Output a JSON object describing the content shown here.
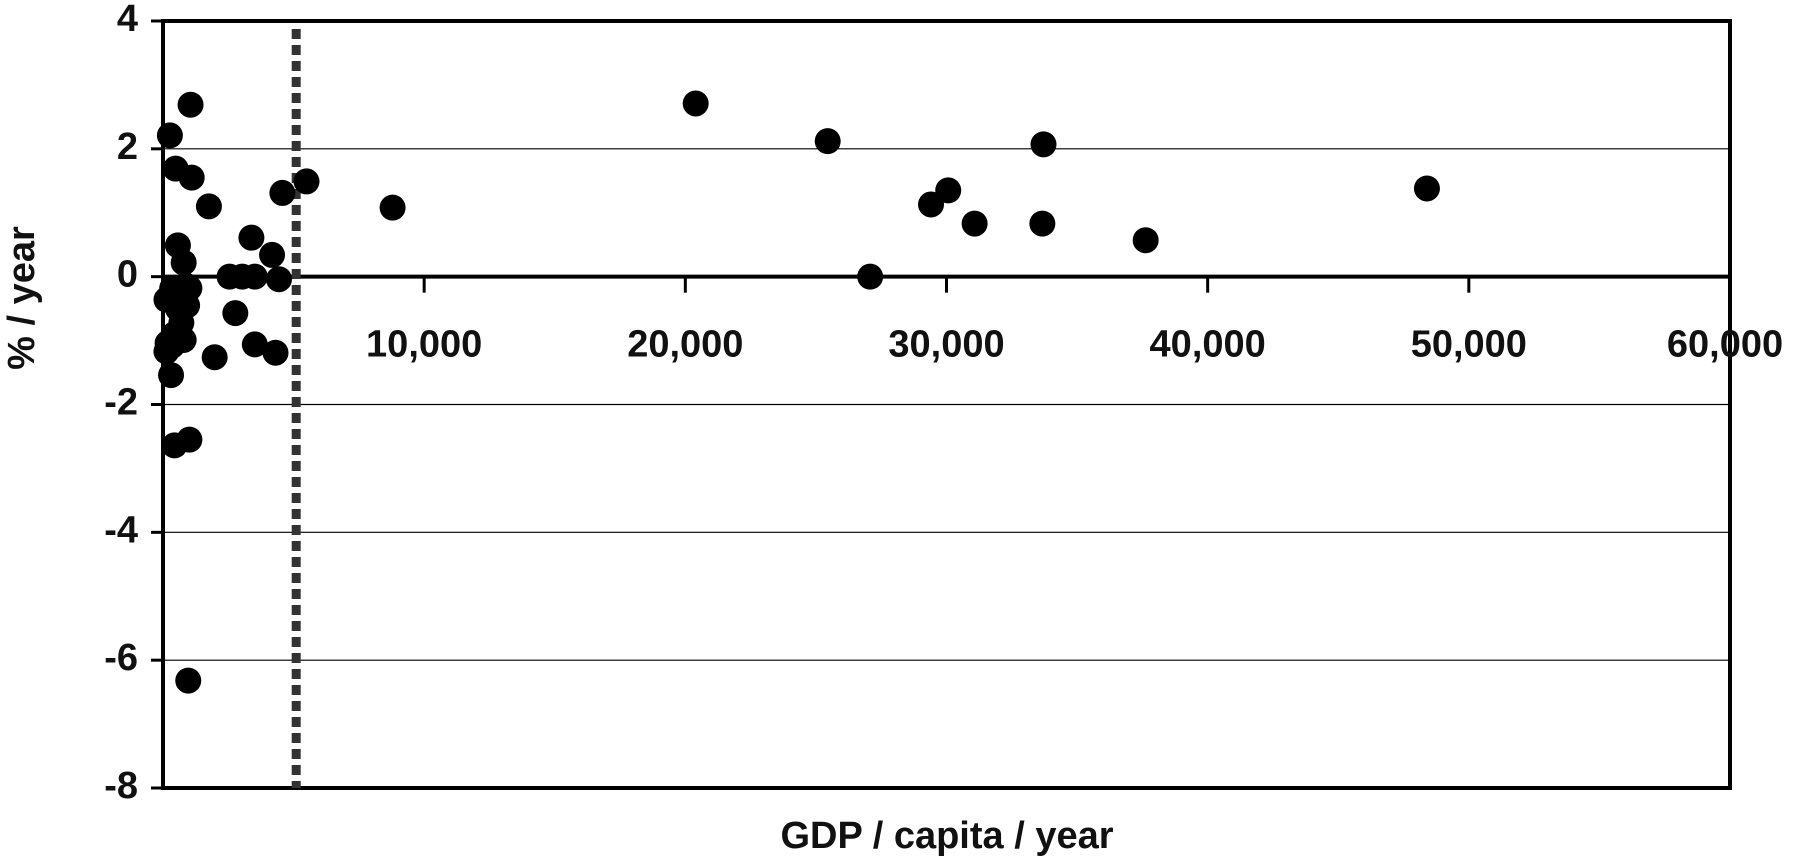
{
  "chart_data": {
    "type": "scatter",
    "x_label": "GDP / capita / year",
    "y_label": "% / year",
    "color": "#000000",
    "xlim": [
      0,
      60000
    ],
    "ylim": [
      -8,
      4
    ],
    "xticks": [
      {
        "value": 10000,
        "label": "10,000"
      },
      {
        "value": 20000,
        "label": "20,000"
      },
      {
        "value": 30000,
        "label": "30,000"
      },
      {
        "value": 40000,
        "label": "40,000"
      },
      {
        "value": 50000,
        "label": "50,000"
      },
      {
        "value": 60000,
        "label": "60,000"
      }
    ],
    "yticks": [
      -8,
      -6,
      -4,
      -2,
      0,
      2,
      4
    ],
    "grid": true,
    "reference_line_x": 5100,
    "x": [
      264,
      1055,
      484,
      1099,
      1758,
      4571,
      5495,
      8791,
      20396,
      25451,
      33714,
      30066,
      29407,
      31077,
      33670,
      37626,
      48396,
      27077,
      3385,
      4176,
      571,
      791,
      2549,
      3033,
      3516,
      4440,
      2769,
      3516,
      4308,
      1978,
      132,
      352,
      879,
      1011,
      571,
      923,
      703,
      440,
      791,
      176,
      352,
      132,
      308,
      440,
      1011,
      967
    ],
    "values": [
      2.21,
      2.69,
      1.69,
      1.55,
      1.1,
      1.31,
      1.49,
      1.08,
      2.71,
      2.12,
      2.07,
      1.35,
      1.13,
      0.83,
      0.83,
      0.57,
      1.38,
      0,
      0.61,
      0.34,
      0.49,
      0.22,
      0,
      0,
      0,
      -0.04,
      -0.57,
      -1.06,
      -1.19,
      -1.26,
      -0.36,
      -0.18,
      -0.14,
      -0.18,
      -0.5,
      -0.45,
      -0.72,
      -0.9,
      -0.99,
      -1.04,
      -1.08,
      -1.17,
      -1.54,
      -2.64,
      -2.55,
      -6.32
    ]
  }
}
